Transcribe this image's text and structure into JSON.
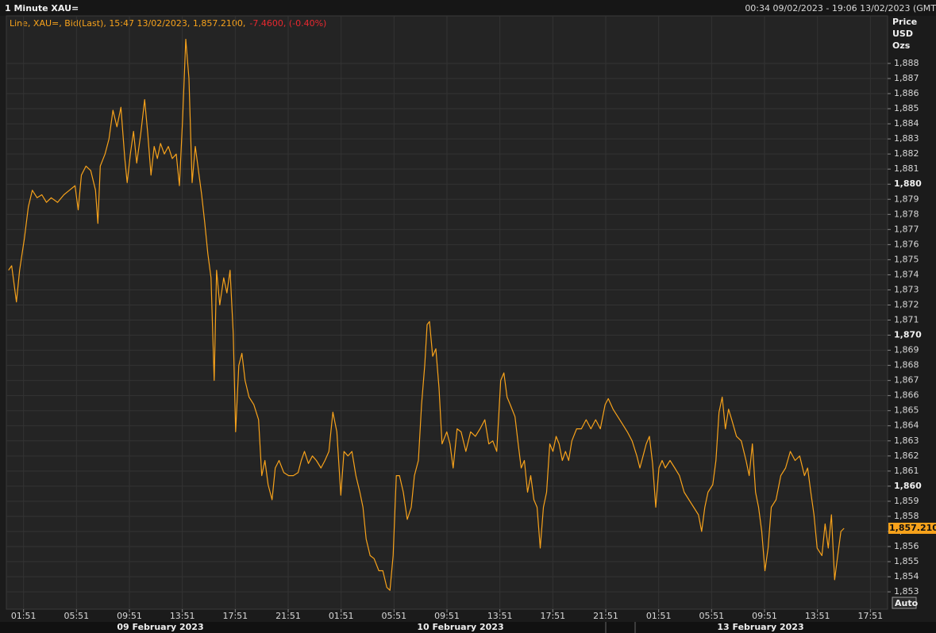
{
  "chart_data": {
    "type": "line",
    "title": "1 Minute XAU=",
    "range_text": "00:34 09/02/2023 - 19:06 13/02/2023 (GMT",
    "legend": "Line, XAU=, Bid(Last), 15:47 13/02/2023, 1,857.2100,",
    "change": "-7.4600, (-0.40%)",
    "ylabel_lines": [
      "Price",
      "USD",
      "Ozs"
    ],
    "date_labels": [
      "09 February 2023",
      "10 February 2023",
      "13 February 2023"
    ],
    "auto_button": "Auto",
    "last_price": {
      "value": 1857.21,
      "label": "1,857.2100"
    },
    "grid": true,
    "xlim": [
      -1.3,
      65.3
    ],
    "ylim": [
      1851.85,
      1891.15
    ],
    "xticks": [
      {
        "value": 0,
        "label": "01:51"
      },
      {
        "value": 4,
        "label": "05:51"
      },
      {
        "value": 8,
        "label": "09:51"
      },
      {
        "value": 12,
        "label": "13:51"
      },
      {
        "value": 16,
        "label": "17:51"
      },
      {
        "value": 20,
        "label": "21:51"
      },
      {
        "value": 24,
        "label": "01:51"
      },
      {
        "value": 28,
        "label": "05:51"
      },
      {
        "value": 32,
        "label": "09:51"
      },
      {
        "value": 36,
        "label": "13:51"
      },
      {
        "value": 40,
        "label": "17:51"
      },
      {
        "value": 44,
        "label": "21:51"
      },
      {
        "value": 48,
        "label": "01:51"
      },
      {
        "value": 52,
        "label": "05:51"
      },
      {
        "value": 56,
        "label": "09:51"
      },
      {
        "value": 60,
        "label": "13:51"
      },
      {
        "value": 64,
        "label": "17:51"
      }
    ],
    "yticks": [
      {
        "value": 1853,
        "label": "1,853"
      },
      {
        "value": 1854,
        "label": "1,854"
      },
      {
        "value": 1855,
        "label": "1,855"
      },
      {
        "value": 1856,
        "label": "1,856"
      },
      {
        "value": 1857,
        "label": "1,857"
      },
      {
        "value": 1858,
        "label": "1,858"
      },
      {
        "value": 1859,
        "label": "1,859"
      },
      {
        "value": 1860,
        "label": "1,860"
      },
      {
        "value": 1861,
        "label": "1,861"
      },
      {
        "value": 1862,
        "label": "1,862"
      },
      {
        "value": 1863,
        "label": "1,863"
      },
      {
        "value": 1864,
        "label": "1,864"
      },
      {
        "value": 1865,
        "label": "1,865"
      },
      {
        "value": 1866,
        "label": "1,866"
      },
      {
        "value": 1867,
        "label": "1,867"
      },
      {
        "value": 1868,
        "label": "1,868"
      },
      {
        "value": 1869,
        "label": "1,869"
      },
      {
        "value": 1870,
        "label": "1,870"
      },
      {
        "value": 1871,
        "label": "1,871"
      },
      {
        "value": 1872,
        "label": "1,872"
      },
      {
        "value": 1873,
        "label": "1,873"
      },
      {
        "value": 1874,
        "label": "1,874"
      },
      {
        "value": 1875,
        "label": "1,875"
      },
      {
        "value": 1876,
        "label": "1,876"
      },
      {
        "value": 1877,
        "label": "1,877"
      },
      {
        "value": 1878,
        "label": "1,878"
      },
      {
        "value": 1879,
        "label": "1,879"
      },
      {
        "value": 1880,
        "label": "1,880"
      },
      {
        "value": 1881,
        "label": "1,881"
      },
      {
        "value": 1882,
        "label": "1,882"
      },
      {
        "value": 1883,
        "label": "1,883"
      },
      {
        "value": 1884,
        "label": "1,884"
      },
      {
        "value": 1885,
        "label": "1,885"
      },
      {
        "value": 1886,
        "label": "1,886"
      },
      {
        "value": 1887,
        "label": "1,887"
      },
      {
        "value": 1888,
        "label": "1,888"
      }
    ],
    "series": [
      {
        "color": "#f7a21b",
        "x": [
          -1.14,
          -0.9,
          -0.54,
          -0.3,
          0.06,
          0.36,
          0.66,
          1.02,
          1.38,
          1.73,
          2.09,
          2.57,
          3.05,
          3.47,
          3.89,
          4.13,
          4.37,
          4.72,
          5.08,
          5.44,
          5.62,
          5.8,
          6.16,
          6.46,
          6.76,
          7.06,
          7.36,
          7.65,
          7.83,
          8.07,
          8.31,
          8.55,
          8.85,
          9.15,
          9.39,
          9.63,
          9.87,
          10.11,
          10.35,
          10.64,
          10.94,
          11.24,
          11.54,
          11.78,
          12.02,
          12.26,
          12.5,
          12.74,
          12.98,
          13.22,
          13.46,
          13.69,
          13.93,
          14.17,
          14.41,
          14.59,
          14.83,
          15.13,
          15.37,
          15.61,
          15.85,
          16.03,
          16.27,
          16.5,
          16.74,
          17.04,
          17.4,
          17.76,
          18.0,
          18.24,
          18.48,
          18.78,
          19.02,
          19.31,
          19.67,
          20.03,
          20.39,
          20.75,
          20.99,
          21.23,
          21.53,
          21.83,
          22.13,
          22.48,
          22.78,
          23.08,
          23.38,
          23.68,
          23.98,
          24.22,
          24.52,
          24.82,
          25.12,
          25.42,
          25.65,
          25.89,
          26.19,
          26.49,
          26.85,
          27.15,
          27.45,
          27.69,
          27.93,
          28.17,
          28.41,
          28.7,
          29.0,
          29.3,
          29.54,
          29.84,
          30.08,
          30.32,
          30.5,
          30.68,
          30.92,
          31.16,
          31.4,
          31.63,
          31.99,
          32.23,
          32.47,
          32.77,
          33.07,
          33.43,
          33.79,
          34.15,
          34.5,
          34.86,
          35.16,
          35.46,
          35.76,
          36.06,
          36.3,
          36.54,
          36.78,
          37.14,
          37.38,
          37.61,
          37.85,
          38.09,
          38.33,
          38.57,
          38.81,
          39.05,
          39.29,
          39.53,
          39.77,
          40.01,
          40.25,
          40.48,
          40.72,
          40.96,
          41.2,
          41.44,
          41.8,
          42.16,
          42.52,
          42.88,
          43.24,
          43.59,
          43.95,
          44.19,
          44.55,
          44.91,
          45.27,
          45.63,
          45.99,
          46.35,
          46.58,
          46.82,
          47.06,
          47.3,
          47.54,
          47.78,
          48.02,
          48.26,
          48.5,
          48.86,
          49.22,
          49.57,
          49.93,
          50.29,
          50.65,
          51.01,
          51.25,
          51.49,
          51.73,
          52.09,
          52.33,
          52.56,
          52.8,
          53.04,
          53.28,
          53.52,
          53.88,
          54.24,
          54.6,
          54.84,
          55.08,
          55.32,
          55.55,
          55.79,
          56.03,
          56.27,
          56.51,
          56.87,
          57.23,
          57.59,
          57.95,
          58.31,
          58.66,
          59.02,
          59.26,
          59.5,
          59.74,
          59.98,
          60.34,
          60.58,
          60.82,
          61.06,
          61.3,
          61.53,
          61.77,
          62.01
        ],
        "values": [
          1874.3,
          1874.6,
          1872.2,
          1874.3,
          1876.4,
          1878.5,
          1879.6,
          1879.1,
          1879.3,
          1878.8,
          1879.1,
          1878.8,
          1879.3,
          1879.6,
          1879.9,
          1878.3,
          1880.6,
          1881.2,
          1880.9,
          1879.6,
          1877.4,
          1881.2,
          1882.0,
          1883.0,
          1884.9,
          1883.8,
          1885.1,
          1881.7,
          1880.1,
          1882.0,
          1883.5,
          1881.4,
          1883.3,
          1885.6,
          1883.3,
          1880.6,
          1882.5,
          1881.7,
          1882.7,
          1882.0,
          1882.5,
          1881.7,
          1882.0,
          1879.9,
          1884.3,
          1889.6,
          1887.0,
          1880.1,
          1882.5,
          1880.9,
          1879.3,
          1877.5,
          1875.4,
          1873.8,
          1867.0,
          1874.3,
          1872.0,
          1873.8,
          1872.8,
          1874.3,
          1870.1,
          1863.6,
          1868.0,
          1868.8,
          1867.0,
          1865.9,
          1865.4,
          1864.4,
          1860.7,
          1861.7,
          1860.1,
          1859.1,
          1861.2,
          1861.7,
          1860.9,
          1860.7,
          1860.7,
          1860.9,
          1861.7,
          1862.3,
          1861.5,
          1862.0,
          1861.7,
          1861.2,
          1861.7,
          1862.3,
          1864.9,
          1863.6,
          1859.4,
          1862.3,
          1862.0,
          1862.3,
          1860.7,
          1859.6,
          1858.6,
          1856.5,
          1855.4,
          1855.2,
          1854.4,
          1854.4,
          1853.3,
          1853.1,
          1855.4,
          1860.7,
          1860.7,
          1859.6,
          1857.8,
          1858.6,
          1860.7,
          1861.7,
          1865.4,
          1868.0,
          1870.7,
          1870.9,
          1868.6,
          1869.1,
          1866.5,
          1862.8,
          1863.6,
          1862.8,
          1861.2,
          1863.8,
          1863.6,
          1862.3,
          1863.6,
          1863.3,
          1863.8,
          1864.4,
          1862.8,
          1863.0,
          1862.3,
          1867.0,
          1867.5,
          1865.9,
          1865.4,
          1864.6,
          1862.8,
          1861.2,
          1861.7,
          1859.6,
          1860.7,
          1859.1,
          1858.6,
          1855.9,
          1858.6,
          1859.6,
          1862.8,
          1862.3,
          1863.3,
          1862.8,
          1861.7,
          1862.3,
          1861.7,
          1863.0,
          1863.8,
          1863.8,
          1864.4,
          1863.8,
          1864.4,
          1863.8,
          1865.4,
          1865.8,
          1865.1,
          1864.6,
          1864.1,
          1863.6,
          1863.0,
          1862.0,
          1861.2,
          1862.0,
          1862.8,
          1863.3,
          1861.5,
          1858.6,
          1861.2,
          1861.7,
          1861.2,
          1861.7,
          1861.2,
          1860.7,
          1859.6,
          1859.1,
          1858.6,
          1858.1,
          1857.0,
          1858.6,
          1859.6,
          1860.1,
          1861.7,
          1864.9,
          1865.9,
          1863.8,
          1865.1,
          1864.4,
          1863.3,
          1863.0,
          1861.7,
          1860.7,
          1862.8,
          1859.6,
          1858.6,
          1857.0,
          1854.4,
          1855.9,
          1858.6,
          1859.1,
          1860.7,
          1861.2,
          1862.3,
          1861.7,
          1862.0,
          1860.7,
          1861.2,
          1859.6,
          1858.1,
          1855.9,
          1855.4,
          1857.5,
          1855.9,
          1858.1,
          1853.8,
          1855.4,
          1857.0,
          1857.21
        ]
      }
    ]
  }
}
